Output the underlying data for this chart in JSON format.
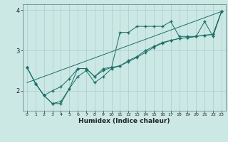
{
  "xlabel": "Humidex (Indice chaleur)",
  "bg_color": "#cce8e4",
  "grid_color": "#aacccc",
  "line_color": "#1a6e66",
  "xlim": [
    -0.5,
    23.5
  ],
  "ylim": [
    1.5,
    4.15
  ],
  "xticks": [
    0,
    1,
    2,
    3,
    4,
    5,
    6,
    7,
    8,
    9,
    10,
    11,
    12,
    13,
    14,
    15,
    16,
    17,
    18,
    19,
    20,
    21,
    22,
    23
  ],
  "yticks": [
    2,
    3,
    4
  ],
  "line1_x": [
    0,
    1,
    2,
    3,
    4,
    5,
    6,
    7,
    8,
    9,
    10,
    11,
    12,
    13,
    14,
    15,
    16,
    17,
    18,
    19,
    20,
    21,
    22,
    23
  ],
  "line1_y": [
    2.58,
    2.18,
    1.88,
    1.68,
    1.68,
    2.05,
    2.55,
    2.55,
    2.35,
    2.5,
    2.58,
    3.45,
    3.45,
    3.6,
    3.6,
    3.6,
    3.6,
    3.72,
    3.35,
    3.35,
    3.35,
    3.72,
    3.35,
    3.97
  ],
  "line2_x": [
    0,
    1,
    2,
    3,
    4,
    5,
    6,
    7,
    8,
    9,
    10,
    11,
    12,
    13,
    14,
    15,
    16,
    17,
    18,
    19,
    20,
    21,
    22,
    23
  ],
  "line2_y": [
    2.58,
    2.18,
    1.88,
    1.68,
    1.73,
    2.05,
    2.35,
    2.5,
    2.2,
    2.35,
    2.55,
    2.62,
    2.72,
    2.83,
    2.95,
    3.08,
    3.18,
    3.25,
    3.3,
    3.32,
    3.35,
    3.38,
    3.4,
    3.97
  ],
  "line3_x": [
    0,
    1,
    2,
    3,
    4,
    5,
    6,
    7,
    8,
    9,
    10,
    11,
    12,
    13,
    14,
    15,
    16,
    17,
    18,
    19,
    20,
    21,
    22,
    23
  ],
  "line3_y": [
    2.58,
    2.18,
    1.88,
    2.0,
    2.1,
    2.3,
    2.55,
    2.55,
    2.35,
    2.55,
    2.58,
    2.62,
    2.75,
    2.85,
    3.0,
    3.1,
    3.2,
    3.25,
    3.3,
    3.32,
    3.35,
    3.38,
    3.4,
    3.97
  ],
  "line4_x": [
    0,
    23
  ],
  "line4_y": [
    2.2,
    3.97
  ]
}
